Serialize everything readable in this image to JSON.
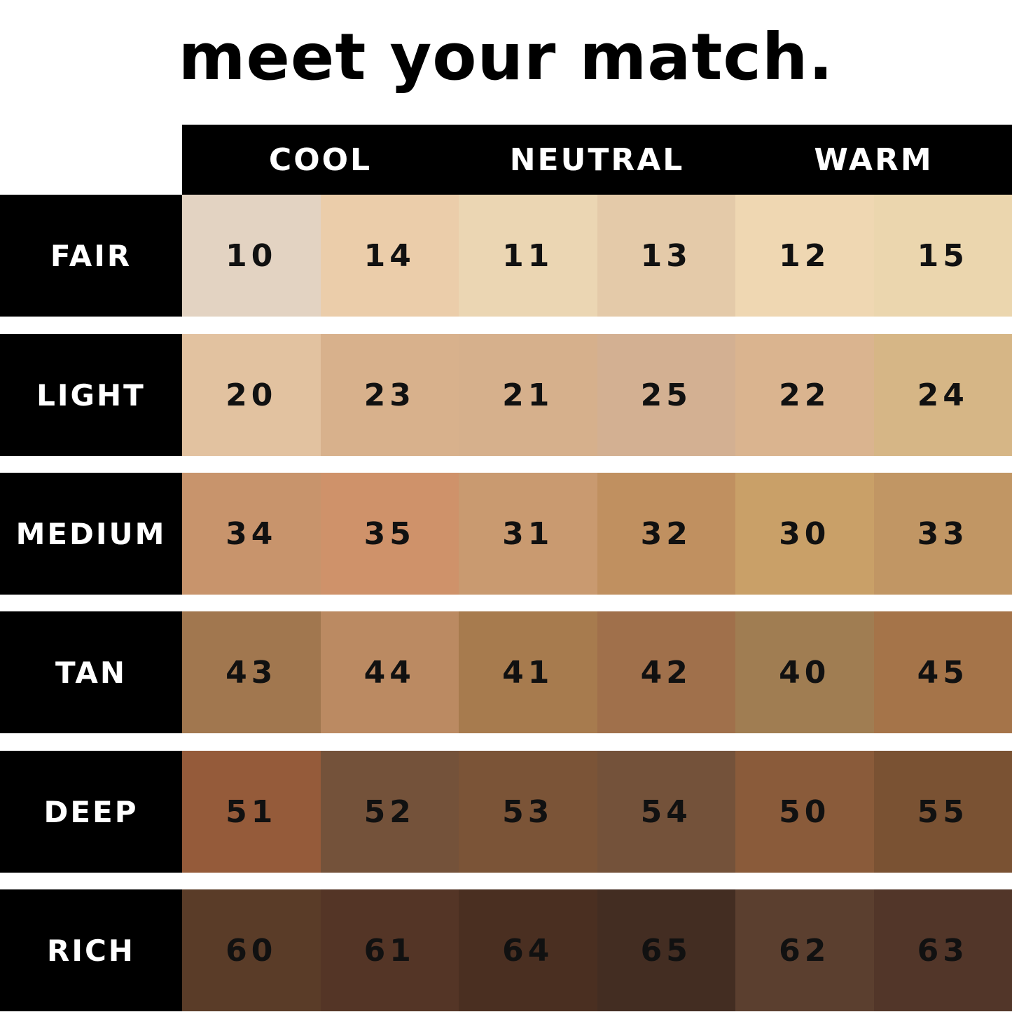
{
  "title": "meet your match.",
  "columns": [
    "COOL",
    "NEUTRAL",
    "WARM"
  ],
  "rows": [
    {
      "label": "FAIR",
      "shades": [
        {
          "number": "10",
          "color": "#e3d3c2"
        },
        {
          "number": "14",
          "color": "#ebcdaa"
        },
        {
          "number": "11",
          "color": "#ebd6b3"
        },
        {
          "number": "13",
          "color": "#e4caa9"
        },
        {
          "number": "12",
          "color": "#efd7b2"
        },
        {
          "number": "15",
          "color": "#ebd6ae"
        }
      ]
    },
    {
      "label": "LIGHT",
      "shades": [
        {
          "number": "20",
          "color": "#e2c2a0"
        },
        {
          "number": "23",
          "color": "#d8b18c"
        },
        {
          "number": "21",
          "color": "#d6b08c"
        },
        {
          "number": "25",
          "color": "#d3b092"
        },
        {
          "number": "22",
          "color": "#dab48f"
        },
        {
          "number": "24",
          "color": "#d6b686"
        }
      ]
    },
    {
      "label": "MEDIUM",
      "shades": [
        {
          "number": "34",
          "color": "#c8946c"
        },
        {
          "number": "35",
          "color": "#cf926a"
        },
        {
          "number": "31",
          "color": "#c99a70"
        },
        {
          "number": "32",
          "color": "#c09060"
        },
        {
          "number": "30",
          "color": "#c9a068"
        },
        {
          "number": "33",
          "color": "#c19664"
        }
      ]
    },
    {
      "label": "TAN",
      "shades": [
        {
          "number": "43",
          "color": "#a1774f"
        },
        {
          "number": "44",
          "color": "#bb8a62"
        },
        {
          "number": "41",
          "color": "#a77b4e"
        },
        {
          "number": "42",
          "color": "#a0704b"
        },
        {
          "number": "40",
          "color": "#a07d52"
        },
        {
          "number": "45",
          "color": "#a57449"
        }
      ]
    },
    {
      "label": "DEEP",
      "shades": [
        {
          "number": "51",
          "color": "#955b3a"
        },
        {
          "number": "52",
          "color": "#74523a"
        },
        {
          "number": "53",
          "color": "#7b5437"
        },
        {
          "number": "54",
          "color": "#74523a"
        },
        {
          "number": "50",
          "color": "#8a5b3a"
        },
        {
          "number": "55",
          "color": "#7a5233"
        }
      ]
    },
    {
      "label": "RICH",
      "shades": [
        {
          "number": "60",
          "color": "#5a3c28"
        },
        {
          "number": "61",
          "color": "#543526"
        },
        {
          "number": "64",
          "color": "#4a2f21"
        },
        {
          "number": "65",
          "color": "#432d22"
        },
        {
          "number": "62",
          "color": "#5b3f2f"
        },
        {
          "number": "63",
          "color": "#523629"
        }
      ]
    }
  ]
}
